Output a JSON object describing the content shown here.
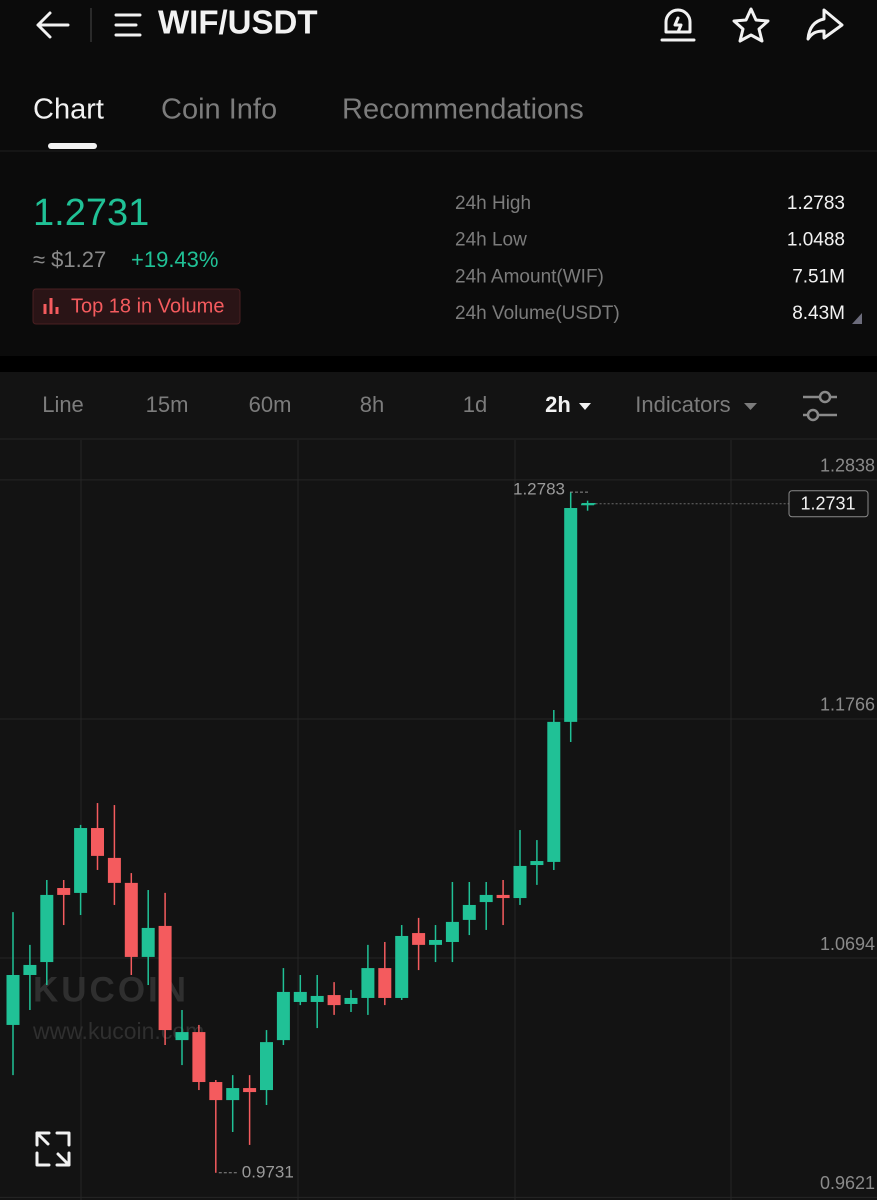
{
  "header": {
    "title": "WIF/USDT"
  },
  "tabs": [
    "Chart",
    "Coin Info",
    "Recommendations"
  ],
  "price": {
    "last": "1.2731",
    "usd": "≈ $1.27",
    "change": "+19.43%",
    "badge": "Top 18 in Volume"
  },
  "stats": [
    {
      "label": "24h High",
      "value": "1.2783"
    },
    {
      "label": "24h Low",
      "value": "1.0488"
    },
    {
      "label": "24h Amount(WIF)",
      "value": "7.51M"
    },
    {
      "label": "24h Volume(USDT)",
      "value": "8.43M"
    }
  ],
  "intervals": [
    "Line",
    "15m",
    "60m",
    "8h",
    "1d",
    "2h",
    "Indicators"
  ],
  "chart_data": {
    "type": "candlestick",
    "watermark": "KUCOIN",
    "watermark_url": "www.kucoin.com",
    "up_color": "#20c196",
    "down_color": "#f45b5e",
    "grid": true,
    "ylim": [
      0.9609,
      1.3017
    ],
    "yticks": [
      1.2838,
      1.1766,
      1.0694,
      0.9621
    ],
    "high_marker": 1.2783,
    "low_marker": 0.9731,
    "last_price": 1.2731,
    "open": [
      1.0394,
      1.0618,
      1.0676,
      1.1008,
      1.0986,
      1.1277,
      1.1143,
      1.1031,
      1.0699,
      1.0838,
      1.0326,
      1.0362,
      1.0138,
      1.0057,
      1.0111,
      1.0102,
      1.0326,
      1.0497,
      1.0497,
      1.0528,
      1.0488,
      1.0515,
      1.0649,
      1.0515,
      1.0806,
      1.0753,
      1.0766,
      1.0865,
      1.0945,
      1.0977,
      1.0963,
      1.1111,
      1.1125,
      1.1753,
      1.2726
    ],
    "high": [
      1.09,
      1.0753,
      1.1044,
      1.1044,
      1.1291,
      1.1389,
      1.138,
      1.1075,
      1.0999,
      1.0986,
      1.0461,
      1.0394,
      1.0147,
      1.0169,
      1.0169,
      1.0371,
      1.0649,
      1.0618,
      1.0618,
      1.0586,
      1.0551,
      1.0753,
      1.0766,
      1.0842,
      1.0874,
      1.0842,
      1.1035,
      1.1035,
      1.1035,
      1.1044,
      1.1268,
      1.1223,
      1.1806,
      1.2783,
      1.2745
    ],
    "low": [
      1.0169,
      1.0461,
      1.0573,
      1.0842,
      1.0887,
      1.1089,
      1.0932,
      1.0618,
      1.0573,
      1.0304,
      1.0214,
      1.0102,
      0.9731,
      0.9914,
      0.9856,
      1.0035,
      1.0304,
      1.0483,
      1.038,
      1.0439,
      1.0452,
      1.0439,
      1.0483,
      1.0506,
      1.064,
      1.0676,
      1.0676,
      1.0797,
      1.082,
      1.0842,
      1.0932,
      1.1022,
      1.1089,
      1.1663,
      1.27
    ],
    "close": [
      1.0618,
      1.0663,
      1.0977,
      1.0977,
      1.1277,
      1.1152,
      1.1031,
      1.0699,
      1.0829,
      1.0371,
      1.0362,
      1.0138,
      1.0057,
      1.0111,
      1.0093,
      1.0317,
      1.0542,
      1.0542,
      1.0524,
      1.0483,
      1.0515,
      1.0649,
      1.0515,
      1.0793,
      1.0753,
      1.0775,
      1.0856,
      1.0932,
      1.0977,
      1.0963,
      1.1107,
      1.1129,
      1.1753,
      1.2712,
      1.2731
    ]
  }
}
